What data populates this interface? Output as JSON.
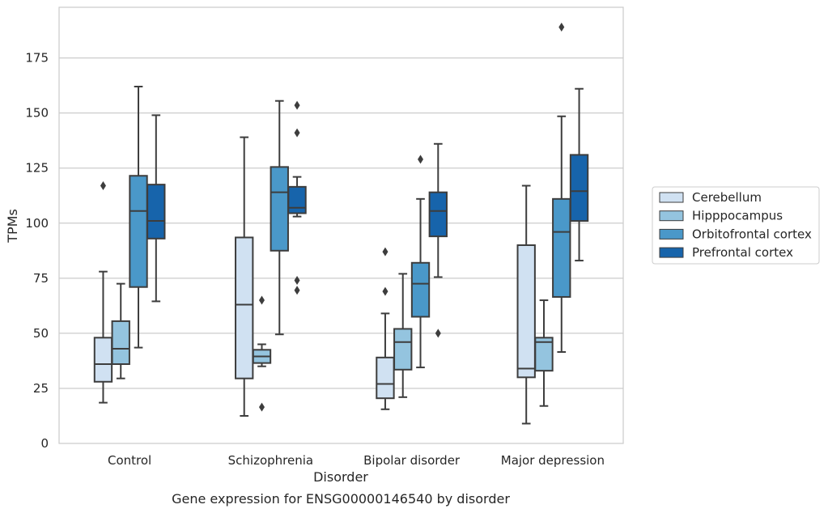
{
  "chart_data": {
    "type": "box",
    "title": "",
    "caption": "Gene expression for ENSG00000146540 by disorder",
    "xlabel": "Disorder",
    "ylabel": "TPMs",
    "ylim": [
      0,
      198
    ],
    "yticks": [
      0,
      25,
      50,
      75,
      100,
      125,
      150,
      175
    ],
    "grid": "horizontal",
    "legend_position": "right",
    "categories": [
      "Control",
      "Schizophrenia",
      "Bipolar disorder",
      "Major depression"
    ],
    "series": [
      {
        "name": "Cerebellum",
        "color": "#d0e1f2",
        "boxes": [
          {
            "whislo": 18.5,
            "q1": 28,
            "med": 36,
            "q3": 48,
            "whishi": 78,
            "fliers": [
              117
            ]
          },
          {
            "whislo": 12.5,
            "q1": 29.5,
            "med": 63,
            "q3": 93.5,
            "whishi": 139,
            "fliers": []
          },
          {
            "whislo": 15.5,
            "q1": 20.5,
            "med": 27,
            "q3": 39,
            "whishi": 59,
            "fliers": [
              69,
              87
            ]
          },
          {
            "whislo": 9,
            "q1": 30,
            "med": 34,
            "q3": 90,
            "whishi": 117,
            "fliers": []
          }
        ]
      },
      {
        "name": "Hipppocampus",
        "color": "#94c4df",
        "boxes": [
          {
            "whislo": 29.5,
            "q1": 36,
            "med": 43,
            "q3": 55.5,
            "whishi": 72.5,
            "fliers": []
          },
          {
            "whislo": 35,
            "q1": 36.5,
            "med": 39.5,
            "q3": 42.5,
            "whishi": 45,
            "fliers": [
              16.5,
              65
            ]
          },
          {
            "whislo": 21,
            "q1": 33.5,
            "med": 46,
            "q3": 52,
            "whishi": 77,
            "fliers": []
          },
          {
            "whislo": 17,
            "q1": 33,
            "med": 46,
            "q3": 48,
            "whishi": 65,
            "fliers": []
          }
        ]
      },
      {
        "name": "Orbitofrontal cortex",
        "color": "#4a98c9",
        "boxes": [
          {
            "whislo": 43.5,
            "q1": 71,
            "med": 105.5,
            "q3": 121.5,
            "whishi": 162,
            "fliers": []
          },
          {
            "whislo": 49.5,
            "q1": 87.5,
            "med": 114,
            "q3": 125.5,
            "whishi": 155.5,
            "fliers": []
          },
          {
            "whislo": 34.5,
            "q1": 57.5,
            "med": 72.5,
            "q3": 82,
            "whishi": 111,
            "fliers": [
              129
            ]
          },
          {
            "whislo": 41.5,
            "q1": 66.5,
            "med": 96,
            "q3": 111,
            "whishi": 148.5,
            "fliers": [
              189
            ]
          }
        ]
      },
      {
        "name": "Prefrontal cortex",
        "color": "#1764ab",
        "boxes": [
          {
            "whislo": 64.5,
            "q1": 93,
            "med": 101,
            "q3": 117.5,
            "whishi": 149,
            "fliers": []
          },
          {
            "whislo": 103,
            "q1": 104.5,
            "med": 107,
            "q3": 116.5,
            "whishi": 121,
            "fliers": [
              69.5,
              74,
              141,
              153.5
            ]
          },
          {
            "whislo": 75.5,
            "q1": 94,
            "med": 105.5,
            "q3": 114,
            "whishi": 136,
            "fliers": [
              50
            ]
          },
          {
            "whislo": 83,
            "q1": 101,
            "med": 114.5,
            "q3": 131,
            "whishi": 161,
            "fliers": []
          }
        ]
      }
    ]
  }
}
